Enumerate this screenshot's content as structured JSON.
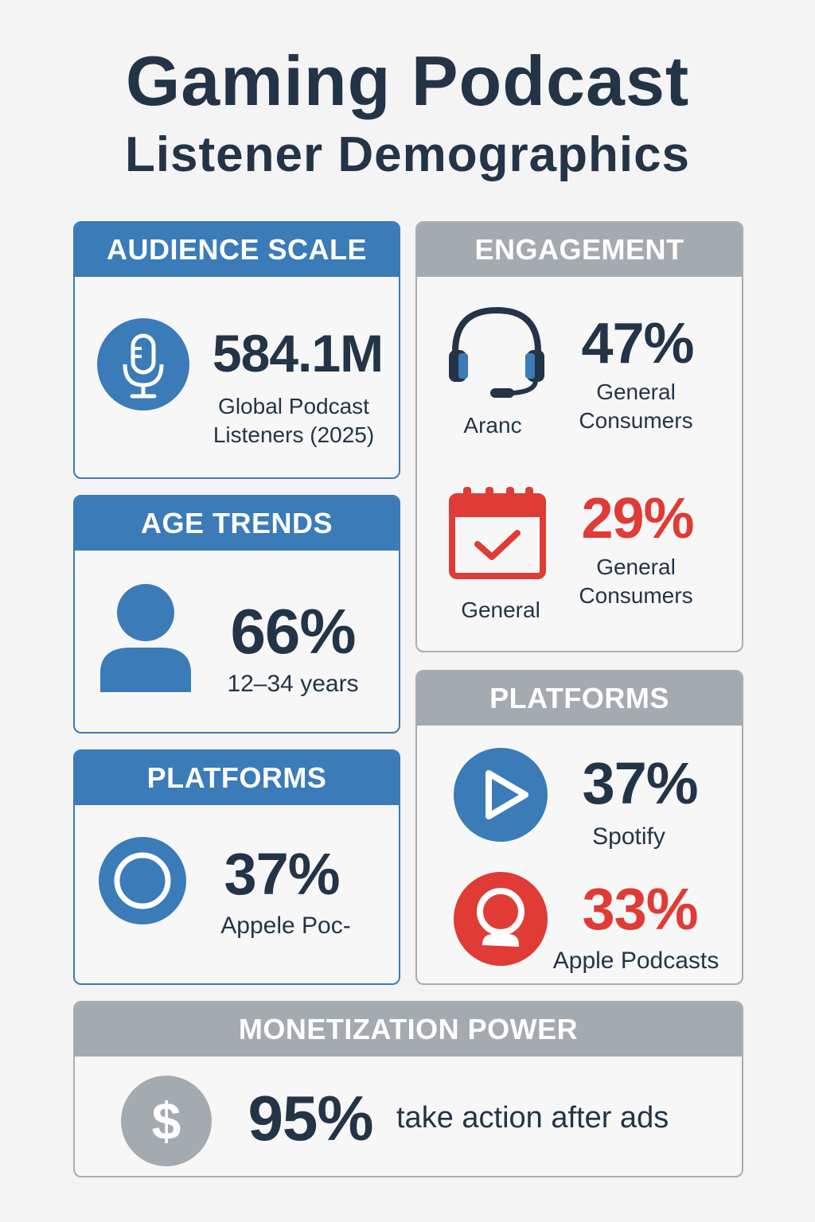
{
  "title": {
    "line1": "Gaming Podcast",
    "line2": "Listener Demographics"
  },
  "audience_scale": {
    "header": "AUDIENCE SCALE",
    "icon": "microphone-icon",
    "value": "584.1M",
    "caption_line1": "Global Podcast",
    "caption_line2": "Listeners (2025)"
  },
  "engagement": {
    "header": "ENGAGEMENT",
    "items": [
      {
        "icon": "headset-icon",
        "icon_label": "Aranc",
        "value": "47%",
        "caption_line1": "General",
        "caption_line2": "Consumers"
      },
      {
        "icon": "calendar-check-icon",
        "icon_label": "General",
        "value": "29%",
        "caption_line1": "General",
        "caption_line2": "Consumers"
      }
    ]
  },
  "age_trends": {
    "header": "AGE TRENDS",
    "icon": "person-icon",
    "value": "66%",
    "caption": "12–34 years"
  },
  "platforms_left": {
    "header": "PLATFORMS",
    "icon": "play-circle-icon",
    "value": "37%",
    "caption": "Appele Poc-"
  },
  "platforms_right": {
    "header": "PLATFORMS",
    "items": [
      {
        "icon": "play-icon",
        "value": "37%",
        "caption": "Spotify"
      },
      {
        "icon": "podcast-person-icon",
        "value": "33%",
        "caption": "Apple Podcasts"
      }
    ]
  },
  "monetization": {
    "header": "MONETIZATION POWER",
    "icon": "dollar-icon",
    "value": "95%",
    "caption": "take action after ads"
  },
  "colors": {
    "blue": "#3a7bb8",
    "gray_header": "#a3aab0",
    "red": "#e03b35",
    "navy_text": "#243447"
  }
}
